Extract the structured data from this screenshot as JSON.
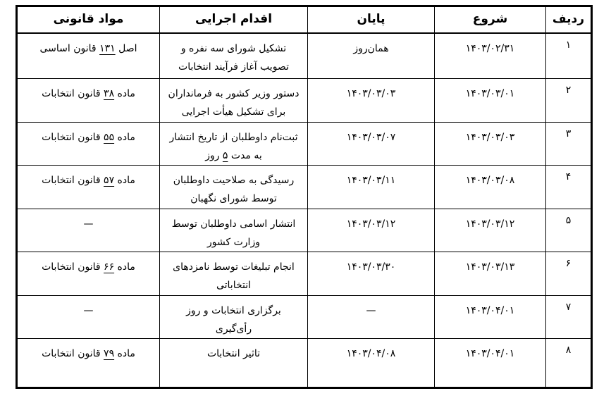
{
  "table": {
    "headers": {
      "radif": "ردیف",
      "start": "شروع",
      "end": "پایان",
      "action": "اقدام اجرایی",
      "legal": "مواد قانونی"
    },
    "rows": [
      {
        "radif": "۱",
        "start": [
          [
            {
              "t": "۱۴۰۳/۰۲/۳۱"
            }
          ]
        ],
        "end": [
          [
            {
              "t": "همان‌روز"
            }
          ]
        ],
        "action": [
          [
            {
              "t": "تشکیل شورای سه نفره و"
            }
          ],
          [
            {
              "t": "تصویب آغاز فرآیند انتخابات"
            }
          ]
        ],
        "legal": [
          [
            {
              "t": "اصل "
            },
            {
              "t": "۱۳۱",
              "u": true
            },
            {
              "t": " قانون اساسی"
            }
          ]
        ]
      },
      {
        "radif": "۲",
        "start": [
          [
            {
              "t": "۱۴۰۳/۰۳/۰۱"
            }
          ]
        ],
        "end": [
          [
            {
              "t": "۱۴۰۳/۰۳/۰۳"
            }
          ]
        ],
        "action": [
          [
            {
              "t": "دستور وزیر کشور به فرمانداران"
            }
          ],
          [
            {
              "t": "برای تشکیل هیأت اجرایی"
            }
          ]
        ],
        "legal": [
          [
            {
              "t": "ماده "
            },
            {
              "t": "۳۸",
              "u": true
            },
            {
              "t": " قانون انتخابات"
            }
          ]
        ]
      },
      {
        "radif": "۳",
        "start": [
          [
            {
              "t": "۱۴۰۳/۰۳/۰۳"
            }
          ]
        ],
        "end": [
          [
            {
              "t": "۱۴۰۳/۰۳/۰۷"
            }
          ]
        ],
        "action": [
          [
            {
              "t": "ثبت‌نام داوطلبان از تاریخ انتشار"
            }
          ],
          [
            {
              "t": "به مدت "
            },
            {
              "t": "۵",
              "u": true
            },
            {
              "t": " روز"
            }
          ]
        ],
        "legal": [
          [
            {
              "t": "ماده "
            },
            {
              "t": "۵۵",
              "u": true
            },
            {
              "t": " قانون انتخابات"
            }
          ]
        ]
      },
      {
        "radif": "۴",
        "start": [
          [
            {
              "t": "۱۴۰۳/۰۳/۰۸"
            }
          ]
        ],
        "end": [
          [
            {
              "t": "۱۴۰۳/۰۳/۱۱"
            }
          ]
        ],
        "action": [
          [
            {
              "t": "رسیدگی به صلاحیت داوطلبان"
            }
          ],
          [
            {
              "t": "توسط شورای نگهبان"
            }
          ]
        ],
        "legal": [
          [
            {
              "t": "ماده "
            },
            {
              "t": "۵۷",
              "u": true
            },
            {
              "t": " قانون انتخابات"
            }
          ]
        ]
      },
      {
        "radif": "۵",
        "start": [
          [
            {
              "t": "۱۴۰۳/۰۳/۱۲"
            }
          ]
        ],
        "end": [
          [
            {
              "t": "۱۴۰۳/۰۳/۱۲"
            }
          ]
        ],
        "action": [
          [
            {
              "t": "انتشار اسامی داوطلبان توسط"
            }
          ],
          [
            {
              "t": "وزارت کشور"
            }
          ]
        ],
        "legal": [
          [
            {
              "t": "—"
            }
          ]
        ]
      },
      {
        "radif": "۶",
        "start": [
          [
            {
              "t": "۱۴۰۳/۰۳/۱۳"
            }
          ]
        ],
        "end": [
          [
            {
              "t": "۱۴۰۳/۰۳/۳۰"
            }
          ]
        ],
        "action": [
          [
            {
              "t": "انجام تبلیغات توسط نامزدهای"
            }
          ],
          [
            {
              "t": "انتخاباتی"
            }
          ]
        ],
        "legal": [
          [
            {
              "t": "ماده "
            },
            {
              "t": "۶۶",
              "u": true
            },
            {
              "t": " قانون انتخابات"
            }
          ]
        ]
      },
      {
        "radif": "۷",
        "start": [
          [
            {
              "t": "۱۴۰۳/۰۴/۰۱"
            }
          ]
        ],
        "end": [
          [
            {
              "t": "—"
            }
          ]
        ],
        "action": [
          [
            {
              "t": "برگزاری انتخابات و روز"
            }
          ],
          [
            {
              "t": "رأی‌گیری"
            }
          ]
        ],
        "legal": [
          [
            {
              "t": "—"
            }
          ]
        ]
      },
      {
        "radif": "۸",
        "start": [
          [
            {
              "t": "۱۴۰۳/۰۴/۰۱"
            }
          ]
        ],
        "end": [
          [
            {
              "t": "۱۴۰۳/۰۴/۰۸"
            }
          ]
        ],
        "action": [
          [
            {
              "t": "تاثیر انتخابات"
            }
          ]
        ],
        "legal": [
          [
            {
              "t": "ماده "
            },
            {
              "t": "۷۹",
              "u": true
            },
            {
              "t": " قانون انتخابات"
            }
          ]
        ]
      }
    ],
    "colors": {
      "border": "#000000",
      "text": "#000000",
      "background": "#ffffff"
    }
  }
}
